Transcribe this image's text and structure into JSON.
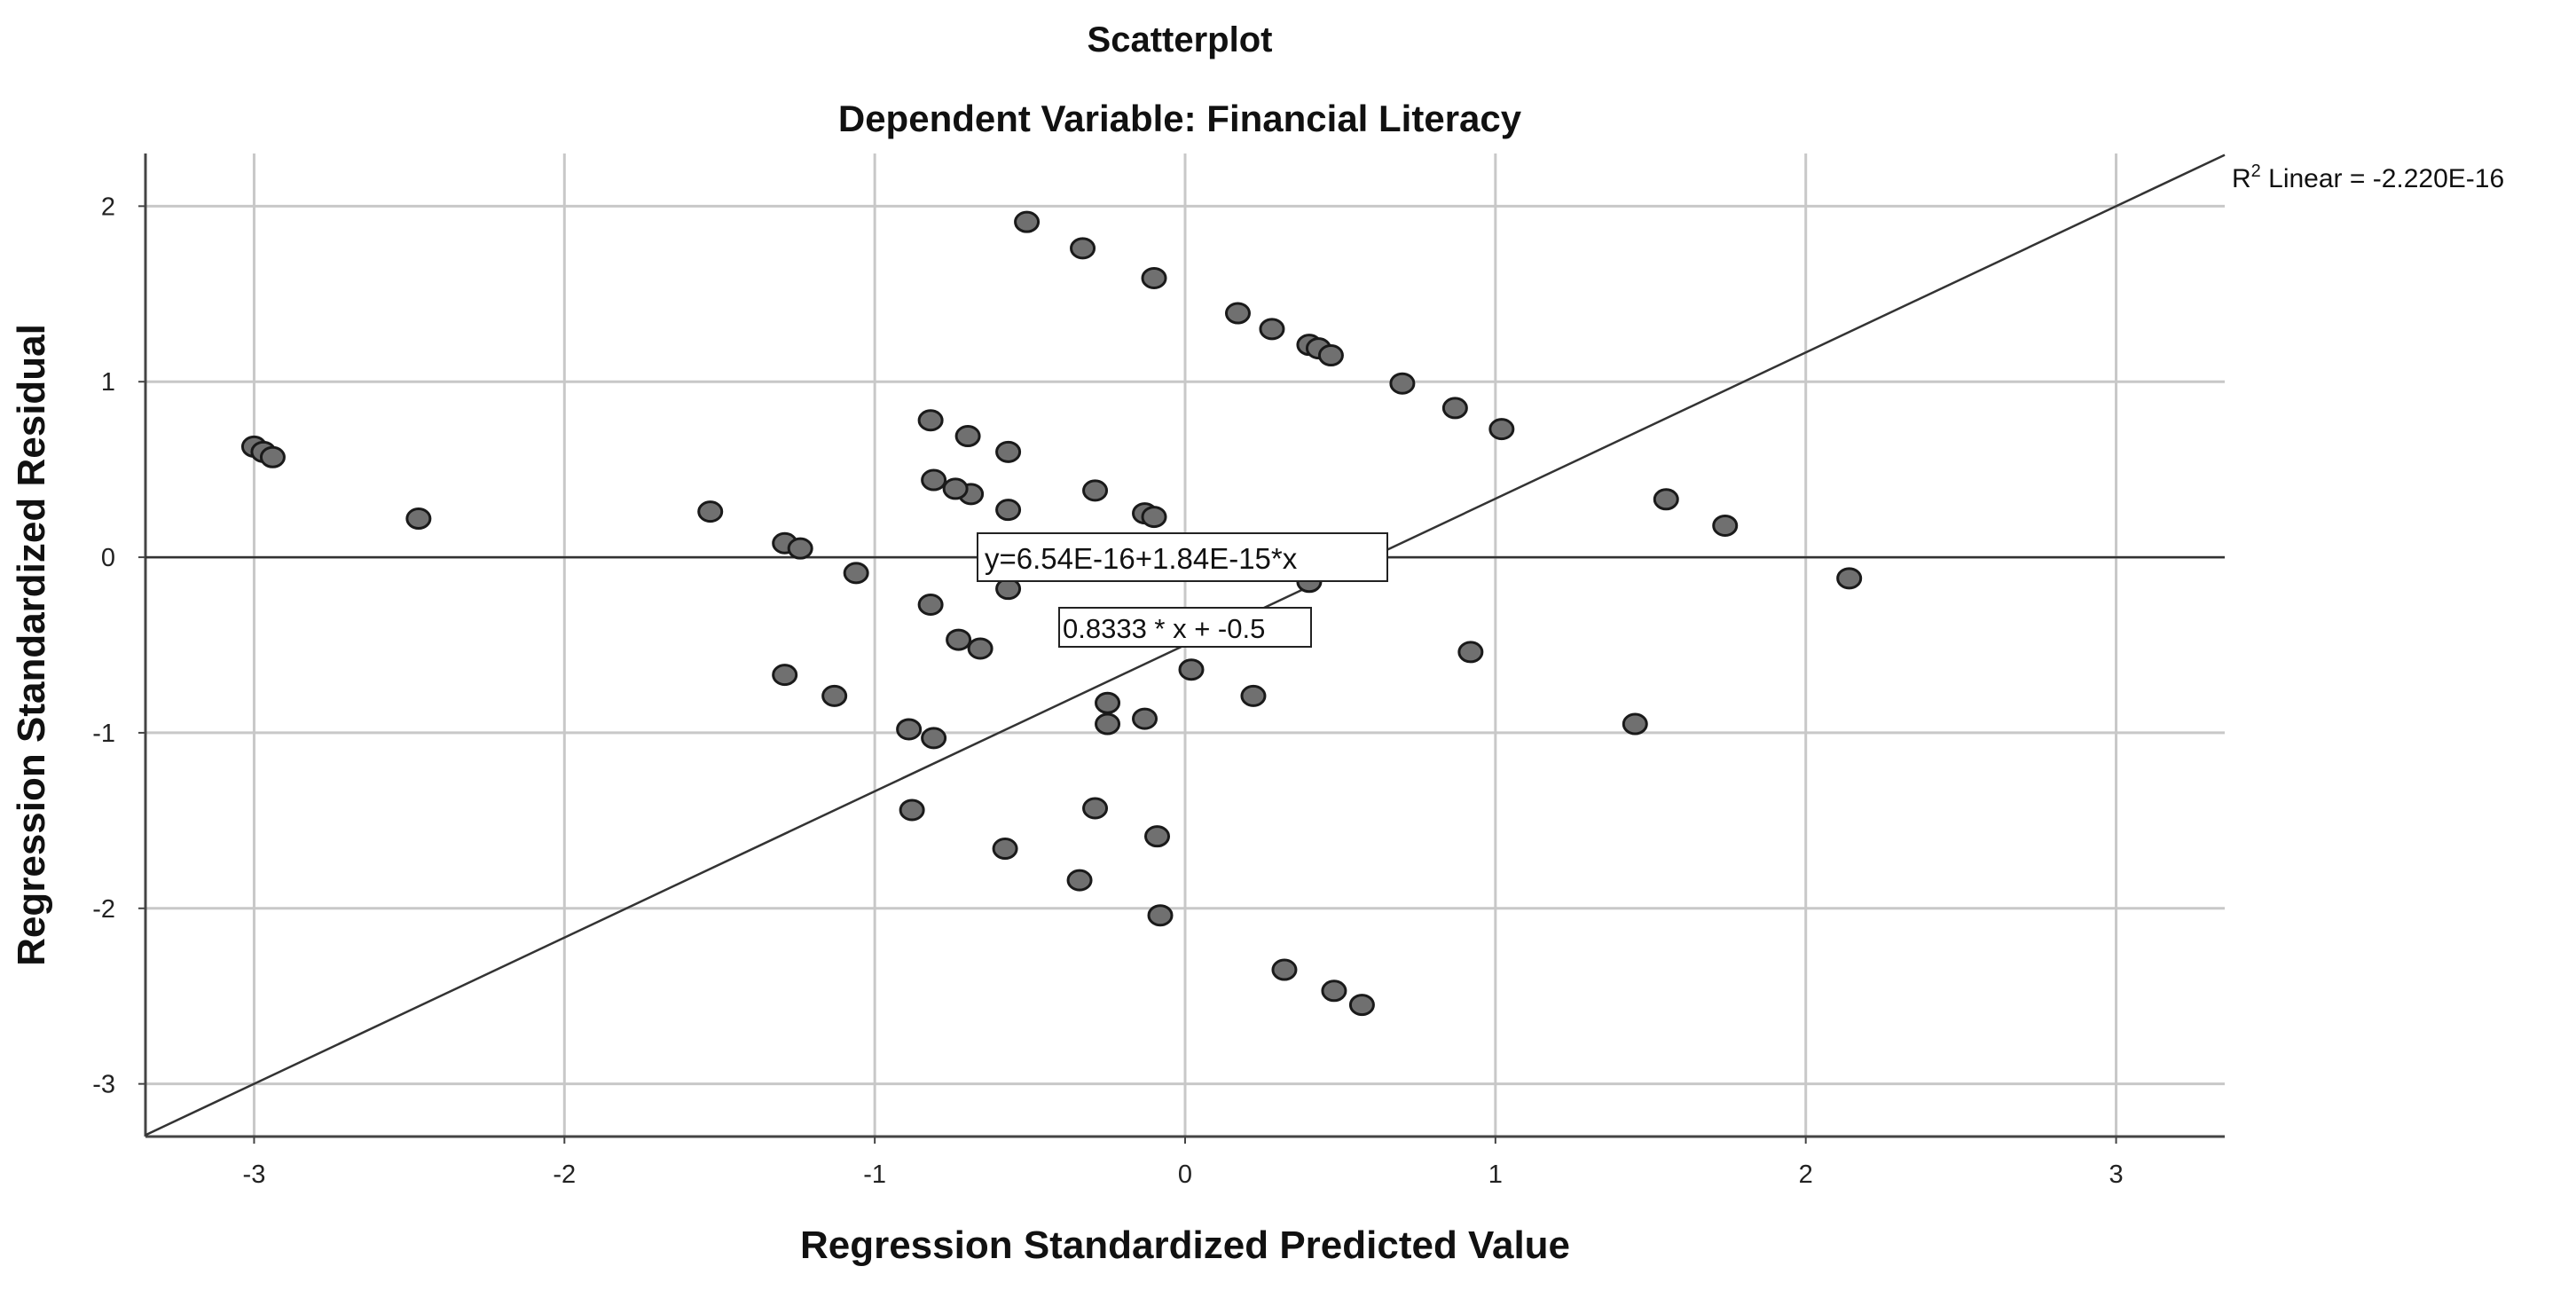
{
  "chart_data": {
    "type": "scatter",
    "title": "Scatterplot",
    "subtitle": "Dependent Variable: Financial Literacy",
    "xlabel": "Regression Standardized Predicted Value",
    "ylabel": "Regression Standardized Residual",
    "xlim": [
      -3.35,
      3.35
    ],
    "ylim": [
      -3.3,
      2.3
    ],
    "x_ticks": [
      -3,
      -2,
      -1,
      0,
      1,
      2,
      3
    ],
    "y_ticks": [
      2,
      1,
      0,
      -1,
      -2,
      -3
    ],
    "grid": true,
    "r2_label_prefix": "R",
    "r2_label_sup": "2",
    "r2_label_suffix": " Linear = -2.220E-16",
    "fit_line_label": "y=6.54E-16+1.84E-15*x",
    "ref_line_label": "0.8333 * x + -0.5",
    "fit_line": {
      "intercept": 0,
      "slope": 0
    },
    "ref_line": {
      "intercept": -0.5,
      "slope": 0.8333
    },
    "marker_color": "#707070",
    "points": [
      [
        -3.0,
        0.63
      ],
      [
        -2.97,
        0.6
      ],
      [
        -2.94,
        0.57
      ],
      [
        -2.47,
        0.22
      ],
      [
        -1.53,
        0.26
      ],
      [
        -1.29,
        0.08
      ],
      [
        -1.24,
        0.05
      ],
      [
        -1.06,
        -0.09
      ],
      [
        -1.29,
        -0.67
      ],
      [
        -1.13,
        -0.79
      ],
      [
        -0.89,
        -0.98
      ],
      [
        -0.88,
        -1.44
      ],
      [
        -0.82,
        0.78
      ],
      [
        -0.81,
        0.44
      ],
      [
        -0.82,
        -0.27
      ],
      [
        -0.81,
        -1.03
      ],
      [
        -0.73,
        -0.47
      ],
      [
        -0.69,
        0.36
      ],
      [
        -0.7,
        0.69
      ],
      [
        -0.66,
        -0.52
      ],
      [
        -0.74,
        0.39
      ],
      [
        -0.57,
        0.6
      ],
      [
        -0.57,
        0.27
      ],
      [
        -0.57,
        -0.18
      ],
      [
        -0.58,
        -1.66
      ],
      [
        -0.51,
        1.91
      ],
      [
        -0.33,
        1.76
      ],
      [
        -0.34,
        -1.84
      ],
      [
        -0.29,
        0.38
      ],
      [
        -0.29,
        -1.43
      ],
      [
        -0.25,
        -0.83
      ],
      [
        -0.25,
        -0.95
      ],
      [
        -0.13,
        0.25
      ],
      [
        -0.1,
        0.23
      ],
      [
        -0.13,
        -0.92
      ],
      [
        -0.09,
        -1.59
      ],
      [
        -0.08,
        -2.04
      ],
      [
        -0.1,
        1.59
      ],
      [
        0.02,
        -0.64
      ],
      [
        0.17,
        1.39
      ],
      [
        0.28,
        1.3
      ],
      [
        0.22,
        -0.79
      ],
      [
        0.32,
        -2.35
      ],
      [
        0.4,
        1.21
      ],
      [
        0.43,
        1.19
      ],
      [
        0.47,
        1.15
      ],
      [
        0.4,
        -0.14
      ],
      [
        0.48,
        -2.47
      ],
      [
        0.57,
        -2.55
      ],
      [
        0.7,
        0.99
      ],
      [
        0.87,
        0.85
      ],
      [
        0.92,
        -0.54
      ],
      [
        1.02,
        0.73
      ],
      [
        1.45,
        -0.95
      ],
      [
        1.55,
        0.33
      ],
      [
        1.74,
        0.18
      ],
      [
        2.14,
        -0.12
      ]
    ]
  }
}
